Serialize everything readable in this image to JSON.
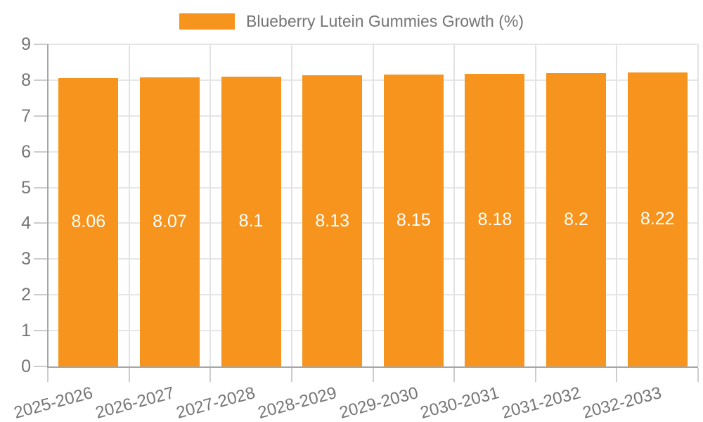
{
  "legend": {
    "label": "Blueberry Lutein Gummies Growth (%)",
    "position": "top"
  },
  "chart_data": {
    "type": "bar",
    "title": "",
    "xlabel": "",
    "ylabel": "",
    "categories": [
      "2025-2026",
      "2026-2027",
      "2027-2028",
      "2028-2029",
      "2029-2030",
      "2030-2031",
      "2031-2032",
      "2032-2033"
    ],
    "series": [
      {
        "name": "Blueberry Lutein Gummies Growth (%)",
        "values": [
          8.06,
          8.07,
          8.1,
          8.13,
          8.15,
          8.18,
          8.2,
          8.22
        ]
      }
    ],
    "value_labels": [
      "8.06",
      "8.07",
      "8.1",
      "8.13",
      "8.15",
      "8.18",
      "8.2",
      "8.22"
    ],
    "ylim": [
      0,
      9
    ],
    "yticks": [
      0,
      1,
      2,
      3,
      4,
      5,
      6,
      7,
      8,
      9
    ],
    "grid": true,
    "legend_position": "top",
    "colors": {
      "bar": "#f7941d",
      "value_label_text": "#ffffff",
      "axis_text": "#757575",
      "axis_line": "#a6a6a6",
      "gridline": "#e6e6e6",
      "background": "#ffffff"
    }
  }
}
